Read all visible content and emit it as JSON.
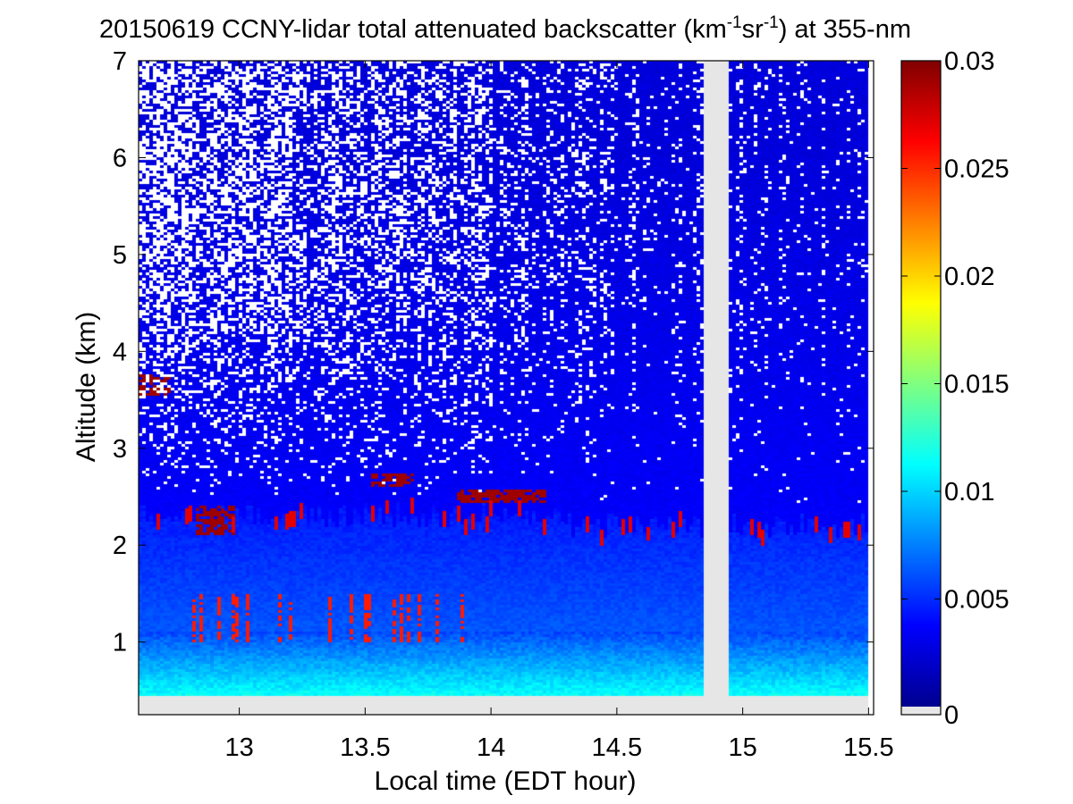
{
  "chart_data": {
    "type": "heatmap",
    "title": {
      "prefix": "20150619 CCNY-lidar total attenuated backscatter (km",
      "sup1": "-1",
      "mid": "sr",
      "sup2": "-1",
      "suffix": ") at 355-nm"
    },
    "xlabel": "Local time (EDT hour)",
    "ylabel": "Altitude (km)",
    "xlim": [
      12.6,
      15.52
    ],
    "ylim": [
      0.25,
      7
    ],
    "x_ticks": [
      13,
      13.5,
      14,
      14.5,
      15,
      15.5
    ],
    "x_tick_labels": [
      "13",
      "13.5",
      "14",
      "14.5",
      "15",
      "15.5"
    ],
    "y_ticks": [
      1,
      2,
      3,
      4,
      5,
      6,
      7
    ],
    "y_tick_labels": [
      "1",
      "2",
      "3",
      "4",
      "5",
      "6",
      "7"
    ],
    "data_extent": {
      "x": [
        12.6,
        15.5
      ],
      "y": [
        0.45,
        7
      ]
    },
    "missing_data_gaps": [
      {
        "x": [
          14.84,
          14.94
        ],
        "y": [
          0.45,
          7
        ]
      },
      {
        "x": [
          12.6,
          15.5
        ],
        "y": [
          0.25,
          0.45
        ]
      }
    ],
    "colorbar": {
      "colormap": "jet",
      "range": [
        0,
        0.03
      ],
      "ticks": [
        0,
        0.005,
        0.01,
        0.015,
        0.02,
        0.025,
        0.03
      ],
      "tick_labels": [
        "0",
        "0.005",
        "0.01",
        "0.015",
        "0.02",
        "0.025",
        "0.03"
      ],
      "no_data_color": "#e6e6e6"
    },
    "features": {
      "boundary_layer_top_km": 2.3,
      "near_surface_range_km": [
        0.45,
        1.1
      ],
      "elevated_aerosol_layers": [
        {
          "x": [
            13.53,
            13.7
          ],
          "y": [
            2.6,
            2.75
          ]
        },
        {
          "x": [
            13.87,
            14.22
          ],
          "y": [
            2.44,
            2.58
          ]
        },
        {
          "x": [
            12.83,
            12.98
          ],
          "y": [
            2.1,
            2.4
          ]
        },
        {
          "x": [
            12.6,
            12.73
          ],
          "y": [
            3.55,
            3.75
          ]
        }
      ]
    }
  }
}
